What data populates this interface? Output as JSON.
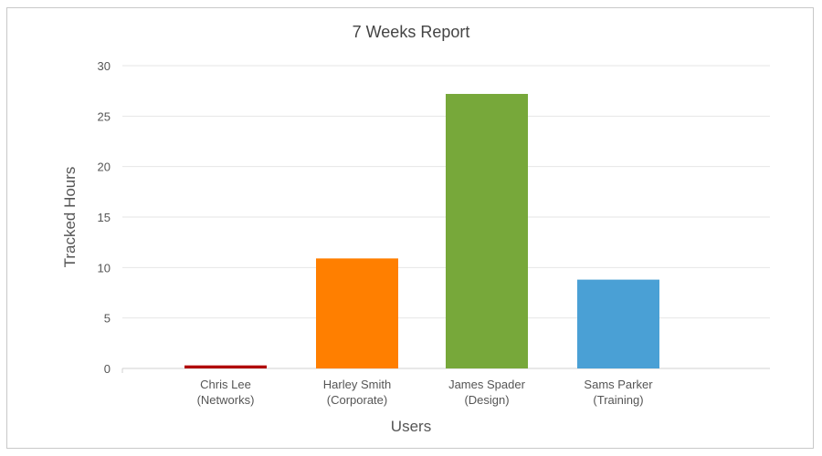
{
  "chart_data": {
    "type": "bar",
    "title": "7 Weeks Report",
    "xlabel": "Users",
    "ylabel": "Tracked Hours",
    "ylim": [
      0,
      30
    ],
    "yticks": [
      0,
      5,
      10,
      15,
      20,
      25,
      30
    ],
    "grid": true,
    "categories": [
      {
        "line1": "Chris Lee",
        "line2": "(Networks)"
      },
      {
        "line1": "Harley Smith",
        "line2": "(Corporate)"
      },
      {
        "line1": "James Spader",
        "line2": "(Design)"
      },
      {
        "line1": "Sams Parker",
        "line2": "(Training)"
      }
    ],
    "values": [
      0.3,
      10.9,
      27.2,
      8.8
    ],
    "colors": [
      "#b00000",
      "#ff7f00",
      "#77a83a",
      "#4aa0d5"
    ]
  }
}
